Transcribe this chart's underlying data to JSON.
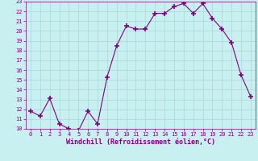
{
  "x": [
    0,
    1,
    2,
    3,
    4,
    5,
    6,
    7,
    8,
    9,
    10,
    11,
    12,
    13,
    14,
    15,
    16,
    17,
    18,
    19,
    20,
    21,
    22,
    23
  ],
  "y": [
    11.8,
    11.3,
    13.1,
    10.5,
    10.0,
    9.8,
    11.8,
    10.5,
    15.3,
    18.5,
    20.5,
    20.2,
    20.2,
    21.8,
    21.8,
    22.5,
    22.8,
    21.8,
    22.8,
    21.3,
    20.2,
    18.8,
    15.5,
    13.3
  ],
  "line_color": "#800080",
  "marker": "+",
  "marker_size": 4,
  "background_color": "#c8f0f0",
  "grid_color": "#a8d8d8",
  "xlabel": "Windchill (Refroidissement éolien,°C)",
  "xlim": [
    -0.5,
    23.5
  ],
  "ylim": [
    10,
    23
  ],
  "yticks": [
    10,
    11,
    12,
    13,
    14,
    15,
    16,
    17,
    18,
    19,
    20,
    21,
    22,
    23
  ],
  "xticks": [
    0,
    1,
    2,
    3,
    4,
    5,
    6,
    7,
    8,
    9,
    10,
    11,
    12,
    13,
    14,
    15,
    16,
    17,
    18,
    19,
    20,
    21,
    22,
    23
  ],
  "tick_color": "#800080",
  "tick_fontsize": 5.0,
  "xlabel_fontsize": 6.0,
  "linewidth": 0.8,
  "marker_linewidth": 1.2
}
